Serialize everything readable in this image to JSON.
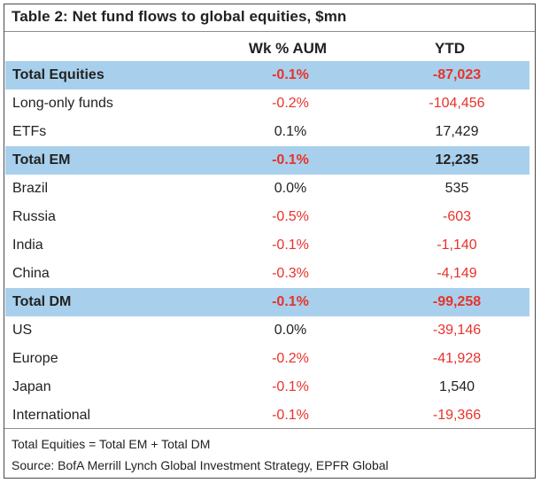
{
  "title": "Table 2: Net fund flows to global equities, $mn",
  "columns": {
    "wk": "Wk % AUM",
    "ytd": "YTD"
  },
  "colors": {
    "negative": "#e8322b",
    "positive": "#222222",
    "total_row_bg": "#a8d0ec"
  },
  "rows": [
    {
      "label": "Total Equities",
      "wk": "-0.1%",
      "ytd": "-87,023",
      "total": true
    },
    {
      "label": "Long-only funds",
      "wk": "-0.2%",
      "ytd": "-104,456",
      "total": false
    },
    {
      "label": "ETFs",
      "wk": "0.1%",
      "ytd": "17,429",
      "total": false
    },
    {
      "label": "Total EM",
      "wk": "-0.1%",
      "ytd": "12,235",
      "total": true
    },
    {
      "label": "Brazil",
      "wk": "0.0%",
      "ytd": "535",
      "total": false
    },
    {
      "label": "Russia",
      "wk": "-0.5%",
      "ytd": "-603",
      "total": false
    },
    {
      "label": "India",
      "wk": "-0.1%",
      "ytd": "-1,140",
      "total": false
    },
    {
      "label": "China",
      "wk": "-0.3%",
      "ytd": "-4,149",
      "total": false
    },
    {
      "label": "Total DM",
      "wk": "-0.1%",
      "ytd": "-99,258",
      "total": true
    },
    {
      "label": "US",
      "wk": "0.0%",
      "ytd": "-39,146",
      "total": false
    },
    {
      "label": "Europe",
      "wk": "-0.2%",
      "ytd": "-41,928",
      "total": false
    },
    {
      "label": "Japan",
      "wk": "-0.1%",
      "ytd": "1,540",
      "total": false
    },
    {
      "label": "International",
      "wk": "-0.1%",
      "ytd": "-19,366",
      "total": false
    }
  ],
  "footnotes": {
    "definition": "Total Equities = Total EM + Total DM",
    "source": "Source: BofA Merrill Lynch Global Investment Strategy, EPFR Global"
  }
}
